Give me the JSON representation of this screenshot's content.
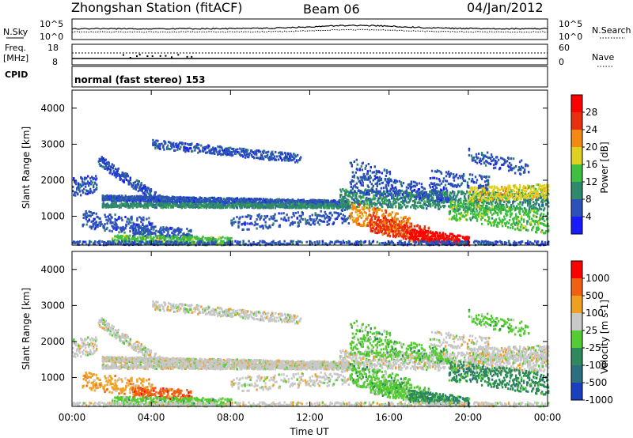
{
  "header": {
    "station": "Zhongshan Station (fitACF)",
    "beam": "Beam 06",
    "date": "04/Jan/2012"
  },
  "status_panel": {
    "nsky_label": "N.Sky",
    "nsearch_label": "N.Search",
    "exp_top": "10^5",
    "exp_bottom": "10^0",
    "freq_label": "Freq.",
    "freq_unit": "[MHz]",
    "freq_top": "18",
    "freq_bottom": "8",
    "nave_label": "Nave",
    "nave_top": "60",
    "nave_bottom": "0",
    "cpid_label": "CPID",
    "cpid_value": "normal (fast stereo) 153"
  },
  "chart_data": [
    {
      "type": "heatmap",
      "name": "power",
      "ylabel": "Slant Range [km]",
      "yticks": [
        "1000",
        "2000",
        "3000",
        "4000"
      ],
      "ylim": [
        200,
        4500
      ],
      "colorbar_label": "Power [dB]",
      "colorbar_ticks": [
        "4",
        "8",
        "12",
        "16",
        "20",
        "24",
        "28"
      ],
      "colors": [
        "#1a1aff",
        "#2c51b8",
        "#2f8a6b",
        "#3fbf3f",
        "#e0d020",
        "#f08a10",
        "#e83010",
        "#ff0000"
      ]
    },
    {
      "type": "heatmap",
      "name": "velocity",
      "ylabel": "Slant Range [km]",
      "yticks": [
        "1000",
        "2000",
        "3000",
        "4000"
      ],
      "ylim": [
        200,
        4500
      ],
      "colorbar_label": "Velocity [m s-1]",
      "colorbar_ticks": [
        "1000",
        "500",
        "100",
        "25",
        "-25",
        "-100",
        "-500",
        "-1000"
      ],
      "colors": [
        "#1a40c0",
        "#2c7080",
        "#2f8a5b",
        "#55cc33",
        "#c8c8c8",
        "#f0a020",
        "#f06010",
        "#ff0000"
      ]
    }
  ],
  "xaxis": {
    "label": "Time UT",
    "ticks": [
      "00:00",
      "04:00",
      "08:00",
      "12:00",
      "16:00",
      "20:00",
      "00:00"
    ]
  }
}
